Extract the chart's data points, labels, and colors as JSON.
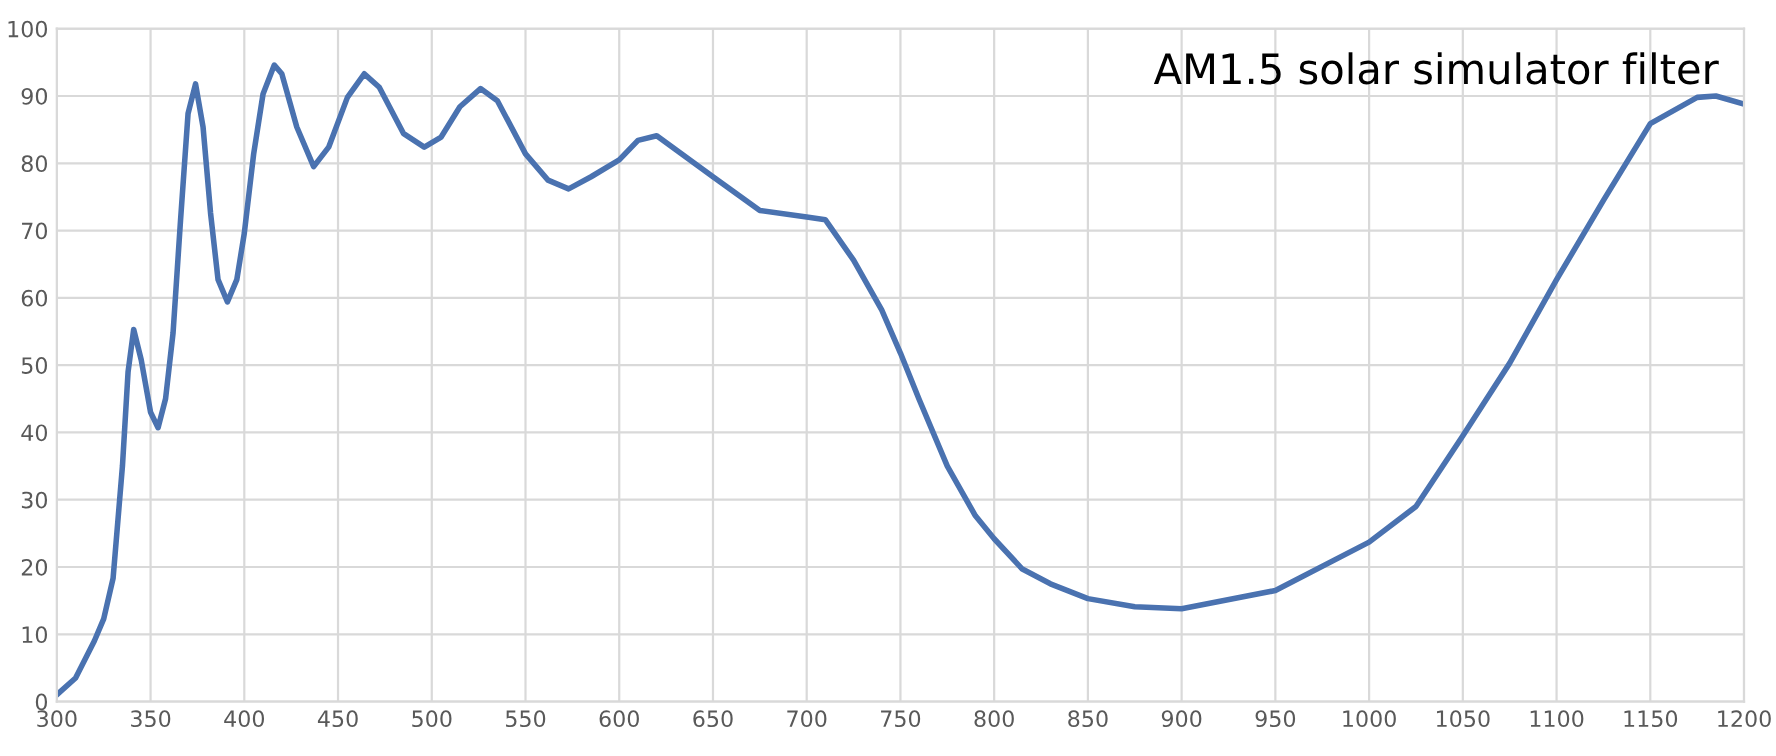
{
  "chart_data": {
    "type": "line",
    "title": "AM1.5 solar simulator filter",
    "x": [
      300,
      310,
      320,
      325,
      330,
      335,
      338,
      341,
      345,
      350,
      354,
      358,
      362,
      366,
      370,
      374,
      378,
      382,
      386,
      391,
      396,
      400,
      405,
      410,
      416,
      420,
      428,
      437,
      445,
      455,
      464,
      472,
      485,
      496,
      505,
      515,
      526,
      535,
      550,
      562,
      573,
      585,
      600,
      610,
      620,
      650,
      675,
      700,
      710,
      725,
      740,
      750,
      760,
      775,
      790,
      800,
      815,
      830,
      850,
      875,
      900,
      950,
      1000,
      1025,
      1050,
      1075,
      1100,
      1125,
      1150,
      1175,
      1185,
      1200
    ],
    "series": [
      {
        "color": "#4a72b0",
        "values": [
          1,
          3.5,
          9,
          12.3,
          18.3,
          35,
          49,
          55.3,
          50.8,
          43,
          40.7,
          45,
          54.8,
          71.6,
          87.4,
          91.8,
          85.4,
          72.6,
          62.7,
          59.4,
          62.7,
          69.6,
          81.4,
          90.3,
          94.6,
          93.3,
          85.4,
          79.5,
          82.4,
          89.8,
          93.3,
          91.3,
          84.4,
          82.4,
          83.9,
          88.4,
          91.1,
          89.3,
          81.4,
          77.5,
          76.2,
          78,
          80.5,
          83.4,
          84.1,
          78,
          73,
          72,
          71.6,
          65.6,
          58.2,
          51.8,
          44.9,
          35,
          27.6,
          24.2,
          19.7,
          17.5,
          15.3,
          14.1,
          13.8,
          16.5,
          23.7,
          29,
          39.5,
          50.3,
          62.7,
          74.5,
          85.9,
          89.8,
          90,
          88.8
        ]
      }
    ],
    "xlim": [
      300,
      1200
    ],
    "xticks": [
      300,
      350,
      400,
      450,
      500,
      550,
      600,
      650,
      700,
      750,
      800,
      850,
      900,
      950,
      1000,
      1050,
      1100,
      1150,
      1200
    ],
    "ylim": [
      0,
      100
    ],
    "yticks": [
      0,
      10,
      20,
      30,
      40,
      50,
      60,
      70,
      80,
      90,
      100
    ],
    "grid": true,
    "marker": "none",
    "line_style": "solid",
    "legend": false
  }
}
